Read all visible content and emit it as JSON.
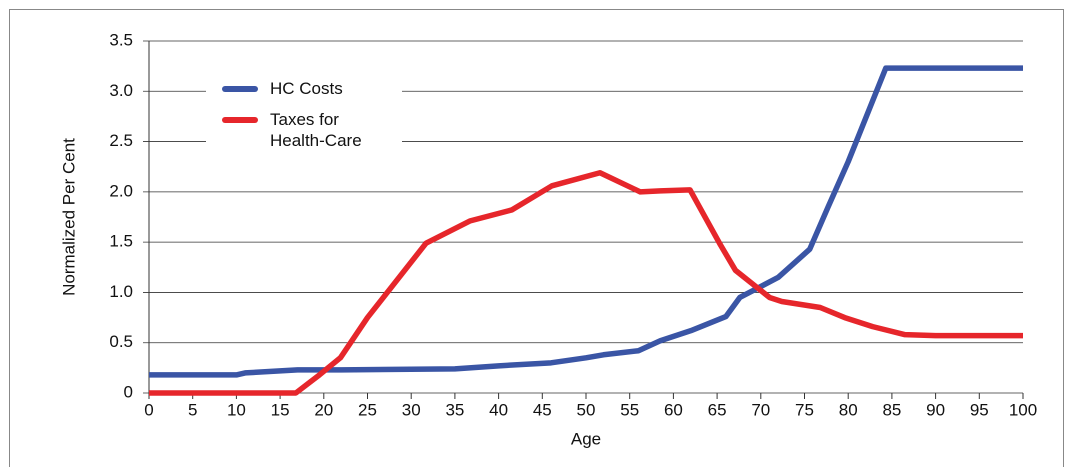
{
  "chart_data": {
    "type": "line",
    "x_label": "Age",
    "y_label": "Normalized Per Cent",
    "xlim": [
      0,
      100
    ],
    "ylim": [
      0,
      3.5
    ],
    "xticks": [
      0,
      5,
      10,
      15,
      20,
      25,
      30,
      35,
      40,
      45,
      50,
      55,
      60,
      65,
      70,
      75,
      80,
      85,
      90,
      95,
      100
    ],
    "yticks": [
      0,
      0.5,
      {
        "value": 1,
        "label": "1.0"
      },
      1.5,
      {
        "value": 2,
        "label": "2.0"
      },
      2.5,
      {
        "value": 3,
        "label": "3.0"
      },
      3.5
    ],
    "grid": true,
    "legend": "upper left",
    "series": [
      {
        "name": "HC Costs",
        "color": "#3a55a5",
        "x": [
          0,
          10,
          11,
          15,
          17,
          22,
          35,
          40,
          46,
          50,
          52,
          56,
          58.5,
          62,
          66,
          67.6,
          72,
          75.6,
          77.7,
          80,
          84.3,
          90,
          100
        ],
        "values": [
          0.18,
          0.18,
          0.2,
          0.22,
          0.23,
          0.23,
          0.24,
          0.27,
          0.3,
          0.35,
          0.38,
          0.42,
          0.52,
          0.62,
          0.76,
          0.95,
          1.15,
          1.43,
          1.85,
          2.3,
          3.23,
          3.23,
          3.23
        ]
      },
      {
        "name": "Taxes for Health-Care",
        "color": "#e6262b",
        "x": [
          0,
          16.8,
          19.5,
          21.9,
          25,
          31.7,
          36.7,
          41.5,
          46.1,
          51.6,
          56.2,
          58.5,
          61.9,
          65.4,
          67.1,
          71,
          72.4,
          76.8,
          79.6,
          82.8,
          86.5,
          90,
          100
        ],
        "values": [
          0,
          0,
          0.18,
          0.35,
          0.75,
          1.49,
          1.71,
          1.82,
          2.06,
          2.19,
          2.0,
          2.01,
          2.02,
          1.47,
          1.22,
          0.95,
          0.91,
          0.85,
          0.75,
          0.66,
          0.58,
          0.57,
          0.57
        ]
      }
    ]
  }
}
